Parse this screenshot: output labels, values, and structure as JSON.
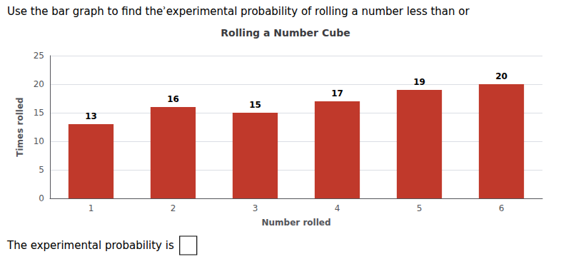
{
  "chart_data": {
    "type": "bar",
    "title": "Rolling a Number Cube",
    "annotations": [
      "Use the bar graph to find theʾexperimental probability of rolling a number less than or",
      "The experimental probability is"
    ],
    "x_label": "Number rolled",
    "y_label": "Times rolled",
    "categories": [
      1,
      2,
      3,
      4,
      5,
      6
    ],
    "values": [
      13,
      16,
      15,
      17,
      19,
      20
    ],
    "color": "#c0392b",
    "ylim": [
      0,
      25
    ],
    "yticks": [
      0,
      5,
      10,
      15,
      20,
      25
    ],
    "grid": true,
    "data_labels": true
  }
}
